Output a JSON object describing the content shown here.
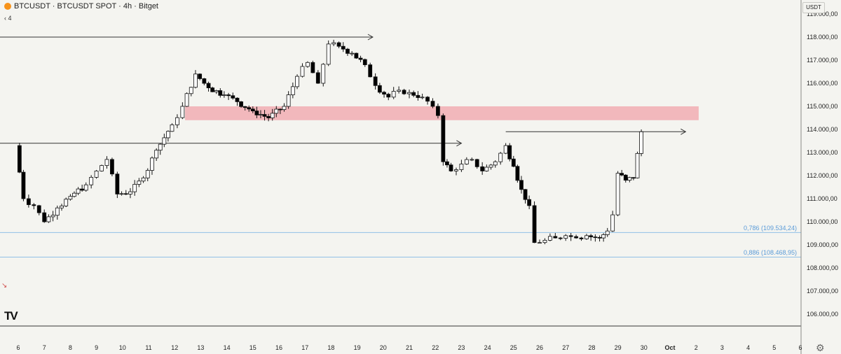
{
  "header": {
    "symbol": "BTCUSDT",
    "title": "BTCUSDT · BTCUSDT SPOT · 4h · Bitget",
    "indicator_value": "4",
    "currency": "USDT"
  },
  "fib_labels": [
    {
      "label": "0,786 (109.534,24)",
      "price": 109534.24
    },
    {
      "label": "0,886 (108.468,95)",
      "price": 108468.95
    }
  ],
  "colors": {
    "up_candle": "#ffffff",
    "down_candle": "#000000",
    "zone": "#f2b8bc",
    "fib_line": "#90bfe6",
    "background": "#f4f4f0"
  },
  "chart_data": {
    "type": "candlestick",
    "title": "BTCUSDT · BTCUSDT SPOT · 4h · Bitget",
    "timeframe": "4h",
    "y_axis": {
      "ticks": [
        {
          "label": "106.000,00",
          "value": 106000
        },
        {
          "label": "107.000,00",
          "value": 107000
        },
        {
          "label": "108.000,00",
          "value": 108000
        },
        {
          "label": "109.000,00",
          "value": 109000
        },
        {
          "label": "110.000,00",
          "value": 110000
        },
        {
          "label": "111.000,00",
          "value": 111000
        },
        {
          "label": "112.000,00",
          "value": 112000
        },
        {
          "label": "113.000,00",
          "value": 113000
        },
        {
          "label": "114.000,00",
          "value": 114000
        },
        {
          "label": "115.000,00",
          "value": 115000
        },
        {
          "label": "116.000,00",
          "value": 116000
        },
        {
          "label": "117.000,00",
          "value": 117000
        },
        {
          "label": "118.000,00",
          "value": 118000
        },
        {
          "label": "119.000,00",
          "value": 119000
        }
      ],
      "range": [
        105500,
        119200
      ]
    },
    "x_axis": {
      "ticks": [
        {
          "label": "6",
          "day": 6
        },
        {
          "label": "7",
          "day": 7
        },
        {
          "label": "8",
          "day": 8
        },
        {
          "label": "9",
          "day": 9
        },
        {
          "label": "10",
          "day": 10
        },
        {
          "label": "11",
          "day": 11
        },
        {
          "label": "12",
          "day": 12
        },
        {
          "label": "13",
          "day": 13
        },
        {
          "label": "14",
          "day": 14
        },
        {
          "label": "15",
          "day": 15
        },
        {
          "label": "16",
          "day": 16
        },
        {
          "label": "17",
          "day": 17
        },
        {
          "label": "18",
          "day": 18
        },
        {
          "label": "19",
          "day": 19
        },
        {
          "label": "20",
          "day": 20
        },
        {
          "label": "21",
          "day": 21
        },
        {
          "label": "22",
          "day": 22
        },
        {
          "label": "23",
          "day": 23
        },
        {
          "label": "24",
          "day": 24
        },
        {
          "label": "25",
          "day": 25
        },
        {
          "label": "26",
          "day": 26
        },
        {
          "label": "27",
          "day": 27
        },
        {
          "label": "28",
          "day": 28
        },
        {
          "label": "29",
          "day": 29
        },
        {
          "label": "30",
          "day": 30
        },
        {
          "label": "Oct",
          "day": 31
        },
        {
          "label": "2",
          "day": 32
        },
        {
          "label": "3",
          "day": 33
        },
        {
          "label": "4",
          "day": 34
        },
        {
          "label": "5",
          "day": 35
        },
        {
          "label": "6",
          "day": 36
        }
      ]
    },
    "key_points": [
      {
        "day": 5.9,
        "close": 113300
      },
      {
        "day": 6.2,
        "close": 111000
      },
      {
        "day": 6.6,
        "close": 110700
      },
      {
        "day": 7.0,
        "close": 110000
      },
      {
        "day": 7.5,
        "close": 110600
      },
      {
        "day": 8.0,
        "close": 111100
      },
      {
        "day": 8.6,
        "close": 111600
      },
      {
        "day": 9.0,
        "close": 112200
      },
      {
        "day": 9.4,
        "close": 112700
      },
      {
        "day": 9.8,
        "close": 111200
      },
      {
        "day": 10.3,
        "close": 111300
      },
      {
        "day": 10.8,
        "close": 111900
      },
      {
        "day": 11.3,
        "close": 113100
      },
      {
        "day": 11.9,
        "close": 114200
      },
      {
        "day": 12.3,
        "close": 115000
      },
      {
        "day": 12.8,
        "close": 116400
      },
      {
        "day": 13.3,
        "close": 115800
      },
      {
        "day": 13.9,
        "close": 115500
      },
      {
        "day": 14.4,
        "close": 115200
      },
      {
        "day": 15.0,
        "close": 114800
      },
      {
        "day": 15.6,
        "close": 114500
      },
      {
        "day": 16.2,
        "close": 115000
      },
      {
        "day": 16.7,
        "close": 116300
      },
      {
        "day": 17.1,
        "close": 116900
      },
      {
        "day": 17.5,
        "close": 116000
      },
      {
        "day": 17.9,
        "close": 117700
      },
      {
        "day": 18.3,
        "close": 117600
      },
      {
        "day": 18.8,
        "close": 117300
      },
      {
        "day": 19.3,
        "close": 116800
      },
      {
        "day": 19.7,
        "close": 115900
      },
      {
        "day": 20.2,
        "close": 115400
      },
      {
        "day": 20.6,
        "close": 115700
      },
      {
        "day": 21.0,
        "close": 115600
      },
      {
        "day": 21.5,
        "close": 115400
      },
      {
        "day": 21.9,
        "close": 115000
      },
      {
        "day": 22.1,
        "close": 114600
      },
      {
        "day": 22.3,
        "close": 112600
      },
      {
        "day": 22.6,
        "close": 112200
      },
      {
        "day": 23.0,
        "close": 112500
      },
      {
        "day": 23.4,
        "close": 112700
      },
      {
        "day": 23.8,
        "close": 112200
      },
      {
        "day": 24.3,
        "close": 112600
      },
      {
        "day": 24.7,
        "close": 113300
      },
      {
        "day": 25.0,
        "close": 112400
      },
      {
        "day": 25.3,
        "close": 111400
      },
      {
        "day": 25.6,
        "close": 110700
      },
      {
        "day": 25.8,
        "close": 109100
      },
      {
        "day": 26.2,
        "close": 109200
      },
      {
        "day": 26.6,
        "close": 109300
      },
      {
        "day": 27.0,
        "close": 109400
      },
      {
        "day": 27.4,
        "close": 109300
      },
      {
        "day": 27.8,
        "close": 109400
      },
      {
        "day": 28.3,
        "close": 109300
      },
      {
        "day": 28.6,
        "close": 109600
      },
      {
        "day": 28.8,
        "close": 110300
      },
      {
        "day": 29.0,
        "close": 112100
      },
      {
        "day": 29.3,
        "close": 111800
      },
      {
        "day": 29.6,
        "close": 111900
      },
      {
        "day": 29.9,
        "close": 113900
      }
    ],
    "annotations": {
      "supply_zone": {
        "from_day": 12.4,
        "to_day": 32.1,
        "low": 114400,
        "high": 115000
      },
      "horizontal_rays": [
        {
          "price": 118000,
          "from_day": 5.3,
          "to_day": 19.6
        },
        {
          "price": 113400,
          "from_day": 5.3,
          "to_day": 23.0
        },
        {
          "price": 113900,
          "from_day": 24.7,
          "to_day": 31.6
        }
      ],
      "fib_levels": [
        109534.24,
        108468.95
      ]
    },
    "grid": false,
    "legend": "none"
  }
}
